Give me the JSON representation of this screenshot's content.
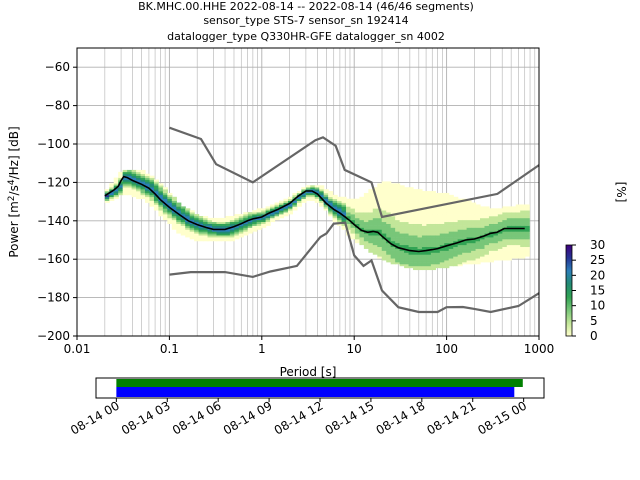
{
  "header": {
    "line1": "BK.MHC.00.HHE   2022-08-14 -- 2022-08-14  (46/46 segments)",
    "line2": "sensor_type STS-7 sensor_sn 192414",
    "line3": "datalogger_type Q330HR-GFE datalogger_sn 4002"
  },
  "chart_data": [
    {
      "type": "heatmap",
      "xlabel": "Period [s]",
      "ylabel_parts": [
        "Power [m",
        "2",
        "/s",
        "4",
        "/Hz] [dB]"
      ],
      "x_scale": "log",
      "xlim": [
        0.01,
        1000
      ],
      "ylim": [
        -200,
        -50
      ],
      "x_ticks": [
        {
          "value": 0.01,
          "label": "0.01"
        },
        {
          "value": 0.1,
          "label": "0.1"
        },
        {
          "value": 1,
          "label": "1"
        },
        {
          "value": 10,
          "label": "10"
        },
        {
          "value": 100,
          "label": "100"
        },
        {
          "value": 1000,
          "label": "1000"
        }
      ],
      "y_ticks": [
        -60,
        -80,
        -100,
        -120,
        -140,
        -160,
        -180,
        -200
      ],
      "grid": true,
      "colorbar": {
        "label": "[%]",
        "ticks": [
          0,
          5,
          10,
          15,
          20,
          25,
          30
        ],
        "range": [
          0,
          30
        ],
        "colors": [
          "#ffffcc",
          "#c2e699",
          "#78c679",
          "#31a354",
          "#238b74",
          "#2c7fb8",
          "#253494",
          "#3f007d"
        ]
      },
      "high_noise_model": [
        [
          0.1,
          -91.5
        ],
        [
          0.22,
          -97.4
        ],
        [
          0.32,
          -110.5
        ],
        [
          0.8,
          -120
        ],
        [
          3.8,
          -98
        ],
        [
          4.6,
          -96.5
        ],
        [
          6.3,
          -101
        ],
        [
          7.9,
          -113.5
        ],
        [
          15.4,
          -120
        ],
        [
          20,
          -138
        ],
        [
          354.8,
          -126
        ],
        [
          1000,
          -111
        ]
      ],
      "low_noise_model": [
        [
          0.1,
          -168
        ],
        [
          0.17,
          -166.7
        ],
        [
          0.4,
          -166.7
        ],
        [
          0.8,
          -169.2
        ],
        [
          1.24,
          -166.4
        ],
        [
          2.4,
          -163.5
        ],
        [
          4.3,
          -148.5
        ],
        [
          5.0,
          -146.6
        ],
        [
          6.0,
          -141.5
        ],
        [
          8.0,
          -141
        ],
        [
          10.0,
          -158
        ],
        [
          12.6,
          -163.5
        ],
        [
          15.4,
          -160.7
        ],
        [
          20,
          -176.3
        ],
        [
          30,
          -185
        ],
        [
          50,
          -187.5
        ],
        [
          80,
          -187.5
        ],
        [
          100,
          -185
        ],
        [
          150,
          -184.9
        ],
        [
          200,
          -185.9
        ],
        [
          300,
          -187.5
        ],
        [
          600,
          -184.4
        ],
        [
          1000,
          -177.7
        ]
      ],
      "mode_line": [
        [
          0.02,
          -127
        ],
        [
          0.025,
          -124
        ],
        [
          0.028,
          -122
        ],
        [
          0.03,
          -119
        ],
        [
          0.032,
          -117
        ],
        [
          0.035,
          -117.5
        ],
        [
          0.04,
          -119
        ],
        [
          0.05,
          -121
        ],
        [
          0.06,
          -123
        ],
        [
          0.07,
          -126
        ],
        [
          0.08,
          -129
        ],
        [
          0.1,
          -133
        ],
        [
          0.13,
          -137
        ],
        [
          0.16,
          -140
        ],
        [
          0.2,
          -142
        ],
        [
          0.25,
          -143.5
        ],
        [
          0.3,
          -144.5
        ],
        [
          0.35,
          -144.5
        ],
        [
          0.4,
          -144.5
        ],
        [
          0.5,
          -143
        ],
        [
          0.6,
          -141.5
        ],
        [
          0.7,
          -140
        ],
        [
          0.8,
          -139
        ],
        [
          1,
          -138
        ],
        [
          1.2,
          -136
        ],
        [
          1.5,
          -134
        ],
        [
          2,
          -131
        ],
        [
          2.5,
          -127
        ],
        [
          3,
          -124.5
        ],
        [
          3.5,
          -124.5
        ],
        [
          4,
          -126
        ],
        [
          5,
          -131
        ],
        [
          6,
          -134
        ],
        [
          7,
          -136
        ],
        [
          8,
          -138
        ],
        [
          9,
          -140
        ],
        [
          10,
          -142
        ],
        [
          12,
          -145
        ],
        [
          14,
          -146
        ],
        [
          16,
          -145.5
        ],
        [
          18,
          -146
        ],
        [
          20,
          -148
        ],
        [
          25,
          -152
        ],
        [
          30,
          -154
        ],
        [
          40,
          -155.5
        ],
        [
          50,
          -156
        ],
        [
          60,
          -155.5
        ],
        [
          70,
          -155
        ],
        [
          80,
          -154.5
        ],
        [
          100,
          -153
        ],
        [
          130,
          -151.5
        ],
        [
          160,
          -150
        ],
        [
          200,
          -149.5
        ],
        [
          250,
          -148
        ],
        [
          300,
          -146.5
        ],
        [
          350,
          -146
        ],
        [
          420,
          -144
        ],
        [
          500,
          -144
        ],
        [
          600,
          -144
        ],
        [
          700,
          -144
        ]
      ],
      "density_band": [
        {
          "period": 0.02,
          "low": -130,
          "high": -124
        },
        {
          "period": 0.03,
          "low": -125,
          "high": -114
        },
        {
          "period": 0.05,
          "low": -128,
          "high": -115
        },
        {
          "period": 0.08,
          "low": -137,
          "high": -122
        },
        {
          "period": 0.12,
          "low": -146,
          "high": -132
        },
        {
          "period": 0.2,
          "low": -150,
          "high": -138
        },
        {
          "period": 0.3,
          "low": -150,
          "high": -140
        },
        {
          "period": 0.5,
          "low": -149,
          "high": -138
        },
        {
          "period": 1.0,
          "low": -142,
          "high": -134
        },
        {
          "period": 2.0,
          "low": -135,
          "high": -128
        },
        {
          "period": 3.0,
          "low": -128,
          "high": -122
        },
        {
          "period": 4.0,
          "low": -130,
          "high": -122
        },
        {
          "period": 6.0,
          "low": -140,
          "high": -128
        },
        {
          "period": 10.0,
          "low": -150,
          "high": -130
        },
        {
          "period": 20.0,
          "low": -160,
          "high": -120
        },
        {
          "period": 50.0,
          "low": -165,
          "high": -125
        },
        {
          "period": 100.0,
          "low": -163,
          "high": -127
        },
        {
          "period": 300.0,
          "low": -160,
          "high": -135
        },
        {
          "period": 700.0,
          "low": -158,
          "high": -132
        }
      ]
    },
    {
      "type": "bar",
      "orientation": "horizontal",
      "x_ticks": [
        "08-14 00",
        "08-14 03",
        "08-14 06",
        "08-14 09",
        "08-14 12",
        "08-14 15",
        "08-14 18",
        "08-14 21",
        "08-15 00"
      ],
      "xlim_hours": [
        -1.2,
        25.2
      ],
      "series": [
        {
          "color": "#008000",
          "start_hour": 0.0,
          "end_hour": 23.95
        },
        {
          "color": "#0000ff",
          "start_hour": 0.0,
          "end_hour": 23.45
        }
      ]
    }
  ]
}
